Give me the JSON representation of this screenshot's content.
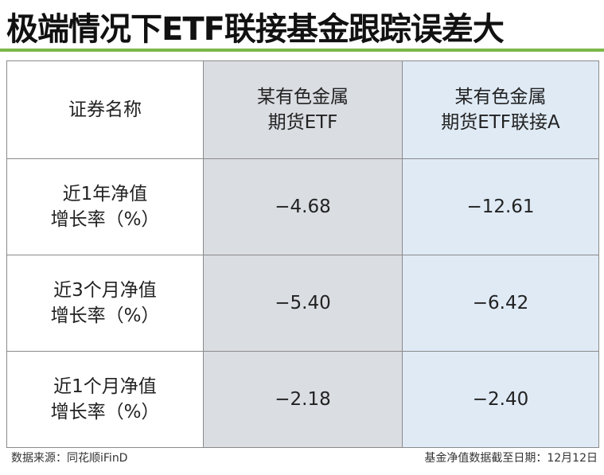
{
  "header": {
    "title": "极端情况下ETF联接基金跟踪误差大"
  },
  "table": {
    "columns": [
      "证券名称",
      "某有色金属\n期货ETF",
      "某有色金属\n期货ETF联接A"
    ],
    "rows": [
      [
        "近1年净值\n增长率（%）",
        "−4.68",
        "−12.61"
      ],
      [
        "近3个月净值\n增长率（%）",
        "−5.40",
        "−6.42"
      ],
      [
        "近1个月净值\n增长率（%）",
        "−2.18",
        "−2.40"
      ]
    ]
  },
  "footer": {
    "source": "数据来源：同花顺iFinD",
    "date_note": "基金净值数据截至日期：12月12日"
  }
}
